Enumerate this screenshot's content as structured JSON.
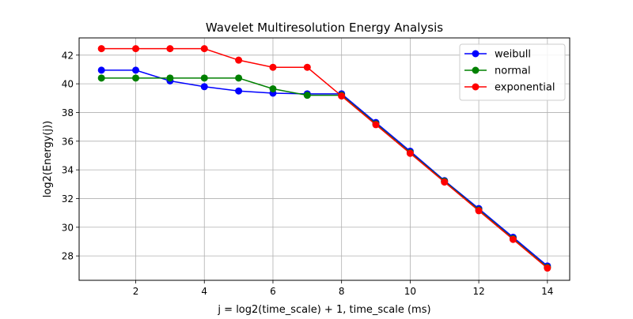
{
  "chart_data": {
    "type": "line",
    "title": "Wavelet Multiresolution Energy Analysis",
    "xlabel": "j = log2(time_scale) + 1, time_scale (ms)",
    "ylabel": "log2(Energy(j))",
    "xlim": [
      0.35,
      14.65
    ],
    "ylim": [
      26.3,
      43.2
    ],
    "xticks": [
      2,
      4,
      6,
      8,
      10,
      12,
      14
    ],
    "yticks": [
      28,
      30,
      32,
      34,
      36,
      38,
      40,
      42
    ],
    "grid": true,
    "legend_position": "top-right",
    "x": [
      1,
      2,
      3,
      4,
      5,
      6,
      7,
      8,
      9,
      10,
      11,
      12,
      13,
      14
    ],
    "series": [
      {
        "name": "weibull",
        "color": "#0000ff",
        "values": [
          40.95,
          40.95,
          40.2,
          39.8,
          39.5,
          39.35,
          39.3,
          39.3,
          37.3,
          35.3,
          33.25,
          31.3,
          29.3,
          27.3
        ]
      },
      {
        "name": "normal",
        "color": "#008000",
        "values": [
          40.4,
          40.4,
          40.4,
          40.4,
          40.4,
          39.65,
          39.2,
          39.2,
          37.2,
          35.2,
          33.2,
          31.2,
          29.2,
          27.2
        ]
      },
      {
        "name": "exponential",
        "color": "#ff0000",
        "values": [
          42.45,
          42.45,
          42.45,
          42.45,
          41.65,
          41.15,
          41.15,
          39.15,
          37.15,
          35.15,
          33.15,
          31.15,
          29.15,
          27.15
        ]
      }
    ]
  }
}
